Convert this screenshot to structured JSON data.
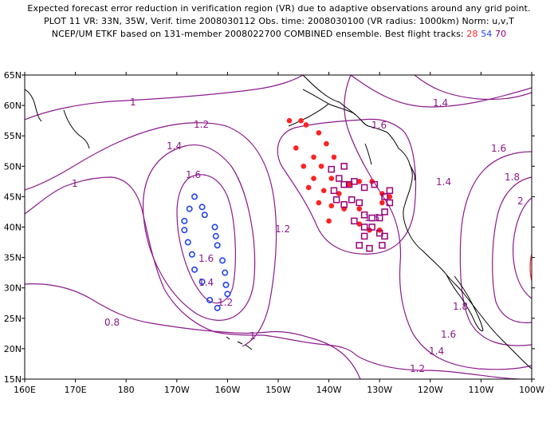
{
  "header": {
    "line1": "Expected forecast error reduction in verification region (VR) due to adaptive observations around any grid point.",
    "line2": "PLOT 11 VR: 33N, 35W, Verif. time 2008030112 Obs. time: 2008030100 (VR radius: 1000km) Norm: u,v,T",
    "line3_prefix": "NCEP/UM ETKF based on 131-member 2008022700 COMBINED ensemble.  Best flight tracks:",
    "track_red": "28",
    "track_blue": "54",
    "track_purple": "70"
  },
  "axes": {
    "lon_labels": [
      "160E",
      "170E",
      "180",
      "170W",
      "160W",
      "150W",
      "140W",
      "130W",
      "120W",
      "110W",
      "100W"
    ],
    "lat_labels": [
      "15N",
      "20N",
      "25N",
      "30N",
      "35N",
      "40N",
      "45N",
      "50N",
      "55N",
      "60N",
      "65N"
    ]
  },
  "contour_labels": [
    {
      "text": "1",
      "name": "contour-label-1-north"
    },
    {
      "text": "1.2",
      "name": "contour-label-1-2-nw"
    },
    {
      "text": "1.4",
      "name": "contour-label-1-4-west"
    },
    {
      "text": "1.6",
      "name": "contour-label-1-6-west"
    },
    {
      "text": "1",
      "name": "contour-label-1-west"
    },
    {
      "text": "1.2",
      "name": "contour-label-1-2-center"
    },
    {
      "text": "1.6",
      "name": "contour-label-1-6-sw"
    },
    {
      "text": "1.4",
      "name": "contour-label-1-4-sw"
    },
    {
      "text": "1.2",
      "name": "contour-label-1-2-sw"
    },
    {
      "text": "0.8",
      "name": "contour-label-0-8"
    },
    {
      "text": "1",
      "name": "contour-label-1-south"
    },
    {
      "text": "1.4",
      "name": "contour-label-1-4-ne"
    },
    {
      "text": "1.6",
      "name": "contour-label-1-6-ne"
    },
    {
      "text": "1.4",
      "name": "contour-label-1-4-east"
    },
    {
      "text": "1.6",
      "name": "contour-label-1-6-east"
    },
    {
      "text": "1.6",
      "name": "contour-label-1-6-far-east"
    },
    {
      "text": "1.8",
      "name": "contour-label-1-8-far-east"
    },
    {
      "text": "2",
      "name": "contour-label-2"
    },
    {
      "text": "1.8",
      "name": "contour-label-1-8-se"
    },
    {
      "text": "1.6",
      "name": "contour-label-1-6-se"
    },
    {
      "text": "1.4",
      "name": "contour-label-1-4-se"
    },
    {
      "text": "1.2",
      "name": "contour-label-1-2-se"
    }
  ],
  "colors": {
    "contour": "#8b1a8b",
    "coast": "#000000",
    "track_red": "#ff2222",
    "track_blue": "#2244ee",
    "track_purple": "#990077",
    "vr_circle": "#ff3333"
  },
  "tracks": {
    "red": [
      [
        -147.8,
        57.5
      ],
      [
        -145.5,
        57.5
      ],
      [
        -144.5,
        56.8
      ],
      [
        -142,
        55.5
      ],
      [
        -140.5,
        53.7
      ],
      [
        -146.5,
        53
      ],
      [
        -143,
        51.5
      ],
      [
        -141.5,
        50
      ],
      [
        -139,
        51.5
      ],
      [
        -145,
        50
      ],
      [
        -143,
        48
      ],
      [
        -139.5,
        48
      ],
      [
        -144,
        46.5
      ],
      [
        -141,
        46
      ],
      [
        -138,
        45.5
      ],
      [
        -136,
        47
      ],
      [
        -134,
        47.5
      ],
      [
        -131.5,
        47.5
      ],
      [
        -142,
        44
      ],
      [
        -139.5,
        43.5
      ],
      [
        -137,
        43
      ],
      [
        -134,
        43
      ],
      [
        -140,
        41
      ],
      [
        -134,
        40.5
      ],
      [
        -132,
        39.5
      ],
      [
        -130,
        39.5
      ],
      [
        -129.5,
        44
      ],
      [
        -129.5,
        45.5
      ],
      [
        -128,
        45
      ]
    ],
    "blue": [
      [
        -166.5,
        45
      ],
      [
        -165,
        43.3
      ],
      [
        -164.5,
        42
      ],
      [
        -162.5,
        40
      ],
      [
        -162.3,
        38.5
      ],
      [
        -162,
        37
      ],
      [
        -161,
        34.5
      ],
      [
        -160.5,
        32.5
      ],
      [
        -160.3,
        30.5
      ],
      [
        -160,
        29
      ],
      [
        -162,
        26.7
      ],
      [
        -163.5,
        28
      ],
      [
        -165,
        31
      ],
      [
        -166.5,
        33
      ],
      [
        -167,
        35.5
      ],
      [
        -167.8,
        37.5
      ],
      [
        -168.5,
        39.5
      ],
      [
        -168.5,
        41
      ],
      [
        -167.5,
        43
      ]
    ],
    "purple": [
      [
        -137,
        50
      ],
      [
        -139.5,
        49.5
      ],
      [
        -138,
        48
      ],
      [
        -137,
        47
      ],
      [
        -136,
        47
      ],
      [
        -135,
        47.5
      ],
      [
        -133,
        46.5
      ],
      [
        -131,
        47
      ],
      [
        -128,
        46
      ],
      [
        -129,
        45
      ],
      [
        -128,
        44
      ],
      [
        -139,
        46
      ],
      [
        -138.5,
        44.5
      ],
      [
        -137,
        43.7
      ],
      [
        -135.5,
        44.5
      ],
      [
        -134,
        44
      ],
      [
        -133,
        42
      ],
      [
        -131.5,
        41.5
      ],
      [
        -130,
        41.5
      ],
      [
        -129,
        42.5
      ],
      [
        -135,
        41
      ],
      [
        -133,
        40
      ],
      [
        -131.5,
        40
      ],
      [
        -130,
        39
      ],
      [
        -133,
        38.5
      ],
      [
        -129,
        38.5
      ],
      [
        -134,
        37
      ],
      [
        -132,
        36.5
      ],
      [
        -129.5,
        37
      ]
    ]
  }
}
